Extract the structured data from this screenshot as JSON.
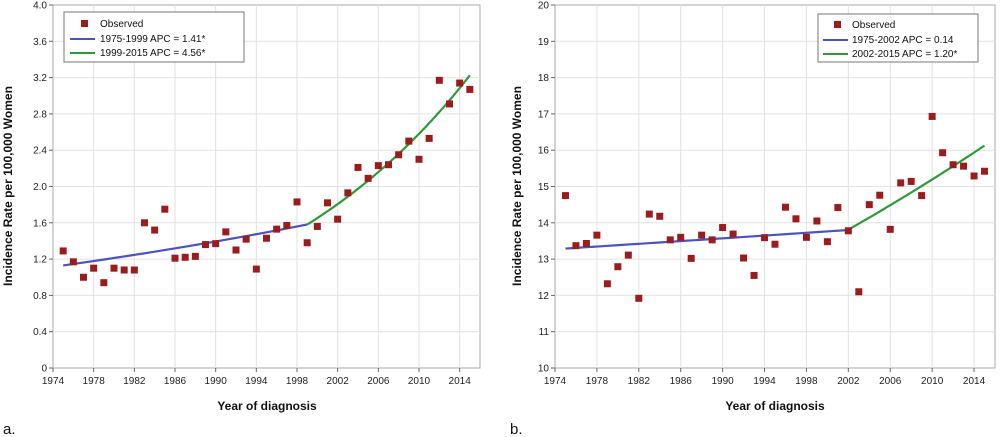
{
  "chart_data": [
    {
      "panel_label": "a.",
      "type": "scatter",
      "xlabel": "Year of diagnosis",
      "ylabel": "Incidence Rate per 100,000 Women",
      "xlim": [
        1974,
        2016
      ],
      "ylim": [
        0,
        4.0
      ],
      "xticks": [
        1974,
        1978,
        1982,
        1986,
        1990,
        1994,
        1998,
        2002,
        2006,
        2010,
        2014
      ],
      "yticks": [
        "0",
        "0.4",
        "0.8",
        "1.2",
        "1.6",
        "2.0",
        "2.4",
        "2.8",
        "3.2",
        "3.6",
        "4.0"
      ],
      "grid": true,
      "legend": {
        "placement": "top-left",
        "observed_label": "Observed",
        "entries": [
          "1975-1999 APC  = 1.41*",
          "1999-2015 APC  = 4.56*"
        ]
      },
      "colors": {
        "observed": "#9b1c1c",
        "segment1": "#4a52c4",
        "segment2": "#2e9a3a",
        "grid": "#e2e2e2"
      },
      "observed": {
        "x": [
          1975,
          1976,
          1977,
          1978,
          1979,
          1980,
          1981,
          1982,
          1983,
          1984,
          1985,
          1986,
          1987,
          1988,
          1989,
          1990,
          1991,
          1992,
          1993,
          1994,
          1995,
          1996,
          1997,
          1998,
          1999,
          2000,
          2001,
          2002,
          2003,
          2004,
          2005,
          2006,
          2007,
          2008,
          2009,
          2010,
          2011,
          2012,
          2013,
          2014,
          2015
        ],
        "y": [
          1.29,
          1.17,
          1.0,
          1.1,
          0.94,
          1.1,
          1.08,
          1.08,
          1.6,
          1.52,
          1.75,
          1.21,
          1.22,
          1.23,
          1.36,
          1.37,
          1.5,
          1.3,
          1.42,
          1.09,
          1.43,
          1.53,
          1.57,
          1.83,
          1.38,
          1.56,
          1.82,
          1.64,
          1.93,
          2.21,
          2.09,
          2.23,
          2.24,
          2.35,
          2.5,
          2.3,
          2.53,
          3.17,
          2.91,
          3.14,
          3.07
        ]
      },
      "segments": [
        {
          "name": "1975-1999",
          "start": 1975,
          "end": 1999,
          "start_value": 1.13,
          "apc": 1.41
        },
        {
          "name": "1999-2015",
          "start": 1999,
          "end": 2015,
          "start_value": 1.58,
          "apc": 4.56
        }
      ]
    },
    {
      "panel_label": "b.",
      "type": "scatter",
      "xlabel": "Year of diagnosis",
      "ylabel": "Incidence Rate per 100,000 Women",
      "xlim": [
        1974,
        2016
      ],
      "ylim": [
        10,
        20
      ],
      "xticks": [
        1974,
        1978,
        1982,
        1986,
        1990,
        1994,
        1998,
        2002,
        2006,
        2010,
        2014
      ],
      "yticks": [
        "10",
        "11",
        "12",
        "13",
        "14",
        "15",
        "16",
        "17",
        "18",
        "19",
        "20"
      ],
      "grid": true,
      "legend": {
        "placement": "top-right",
        "observed_label": "Observed",
        "entries": [
          "1975-2002 APC  = 0.14",
          "2002-2015 APC  = 1.20*"
        ]
      },
      "colors": {
        "observed": "#9b1c1c",
        "segment1": "#4a52c4",
        "segment2": "#2e9a3a",
        "grid": "#e2e2e2"
      },
      "observed": {
        "x": [
          1975,
          1976,
          1977,
          1978,
          1979,
          1980,
          1981,
          1982,
          1983,
          1984,
          1985,
          1986,
          1987,
          1988,
          1989,
          1990,
          1991,
          1992,
          1993,
          1994,
          1995,
          1996,
          1997,
          1998,
          1999,
          2000,
          2001,
          2002,
          2003,
          2004,
          2005,
          2006,
          2007,
          2008,
          2009,
          2010,
          2011,
          2012,
          2013,
          2014,
          2015
        ],
        "y": [
          14.75,
          13.37,
          13.43,
          13.66,
          12.32,
          12.79,
          13.11,
          11.92,
          14.24,
          14.18,
          13.53,
          13.6,
          13.02,
          13.66,
          13.53,
          13.87,
          13.69,
          13.03,
          12.55,
          13.59,
          13.41,
          14.43,
          14.11,
          13.6,
          14.05,
          13.48,
          14.42,
          13.78,
          12.1,
          14.5,
          14.76,
          13.82,
          15.1,
          15.14,
          14.75,
          16.93,
          15.93,
          15.6,
          15.56,
          15.29,
          15.42
        ]
      },
      "segments": [
        {
          "name": "1975-2002",
          "start": 1975,
          "end": 2002,
          "start_value": 13.29,
          "apc": 0.14
        },
        {
          "name": "2002-2015",
          "start": 2002,
          "end": 2015,
          "start_value": 13.81,
          "apc": 1.2
        }
      ]
    }
  ]
}
